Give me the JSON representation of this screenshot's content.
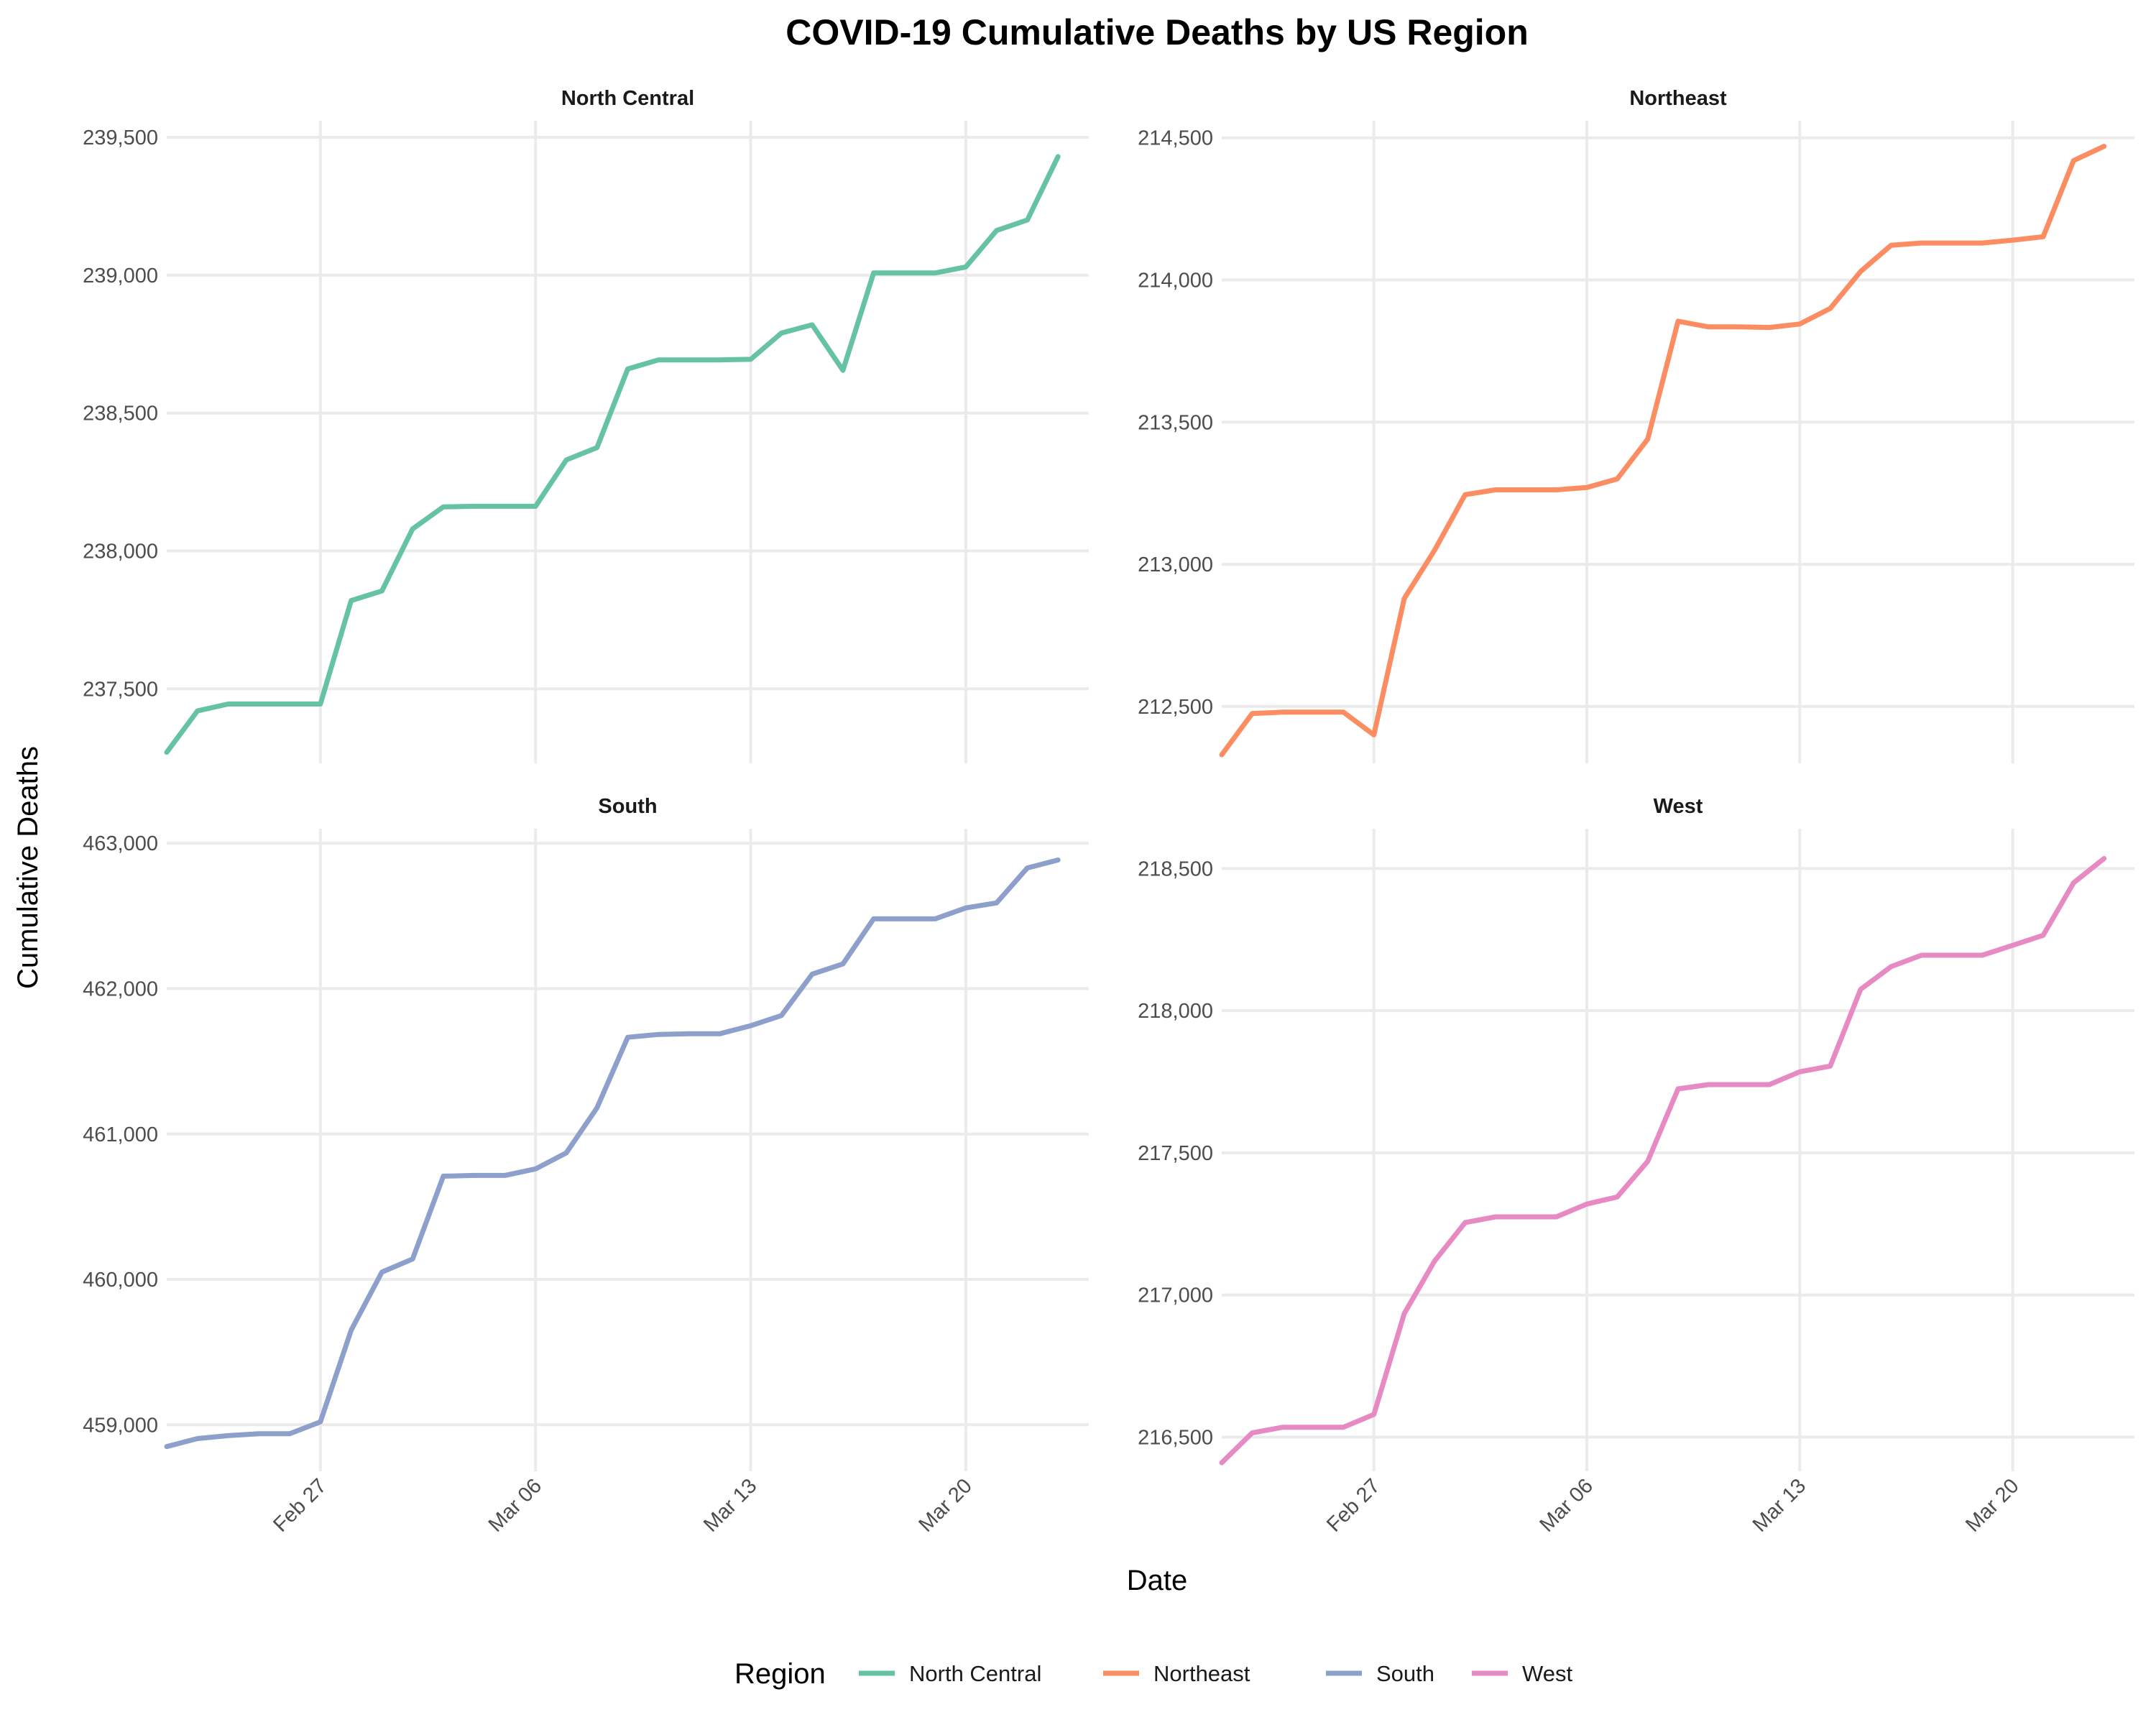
{
  "chart_data": {
    "type": "line",
    "title": "COVID-19 Cumulative Deaths by US Region",
    "xlabel": "Date",
    "ylabel": "Cumulative Deaths",
    "legend": {
      "title": "Region",
      "placement": "bottom",
      "entries": [
        "North Central",
        "Northeast",
        "South",
        "West"
      ]
    },
    "x_ticks": [
      "2023-02-27",
      "2023-03-06",
      "2023-03-13",
      "2023-03-20"
    ],
    "x_tick_labels": [
      "Feb 27",
      "Mar 06",
      "Mar 13",
      "Mar 20"
    ],
    "xlim": [
      "2023-02-22",
      "2023-03-24"
    ],
    "x": [
      "2023-02-22",
      "2023-02-23",
      "2023-02-24",
      "2023-02-25",
      "2023-02-26",
      "2023-02-27",
      "2023-02-28",
      "2023-03-01",
      "2023-03-02",
      "2023-03-03",
      "2023-03-04",
      "2023-03-05",
      "2023-03-06",
      "2023-03-07",
      "2023-03-08",
      "2023-03-09",
      "2023-03-10",
      "2023-03-11",
      "2023-03-12",
      "2023-03-13",
      "2023-03-14",
      "2023-03-15",
      "2023-03-16",
      "2023-03-17",
      "2023-03-18",
      "2023-03-19",
      "2023-03-20",
      "2023-03-21",
      "2023-03-22",
      "2023-03-23"
    ],
    "grid": true,
    "panels": [
      {
        "name": "North Central",
        "color": "#66C2A5",
        "ylim": [
          237230,
          239560
        ],
        "y_ticks": [
          237500,
          238000,
          238500,
          239000,
          239500
        ],
        "y_tick_labels": [
          "237,500",
          "238,000",
          "238,500",
          "239,000",
          "239,500"
        ],
        "values": [
          237270,
          237420,
          237445,
          237445,
          237445,
          237445,
          237820,
          237855,
          238080,
          238160,
          238162,
          238162,
          238162,
          238330,
          238375,
          238660,
          238693,
          238693,
          238693,
          238695,
          238790,
          238820,
          238655,
          239008,
          239008,
          239008,
          239030,
          239162,
          239200,
          239430
        ]
      },
      {
        "name": "Northeast",
        "color": "#FC8D62",
        "ylim": [
          212300,
          214560
        ],
        "y_ticks": [
          212500,
          213000,
          213500,
          214000,
          214500
        ],
        "y_tick_labels": [
          "212,500",
          "213,000",
          "213,500",
          "214,000",
          "214,500"
        ],
        "values": [
          212330,
          212475,
          212480,
          212480,
          212480,
          212400,
          212880,
          213050,
          213245,
          213262,
          213262,
          213262,
          213270,
          213300,
          213440,
          213855,
          213835,
          213835,
          213833,
          213845,
          213900,
          214030,
          214122,
          214130,
          214130,
          214130,
          214140,
          214152,
          214420,
          214470
        ]
      },
      {
        "name": "South",
        "color": "#8DA0CB",
        "ylim": [
          458680,
          463100
        ],
        "y_ticks": [
          459000,
          460000,
          461000,
          462000,
          463000
        ],
        "y_tick_labels": [
          "459,000",
          "460,000",
          "461,000",
          "462,000",
          "463,000"
        ],
        "values": [
          458850,
          458905,
          458925,
          458938,
          458938,
          459020,
          459650,
          460050,
          460140,
          460710,
          460715,
          460715,
          460760,
          460870,
          461180,
          461665,
          461685,
          461690,
          461690,
          461745,
          461815,
          462100,
          462170,
          462480,
          462480,
          462480,
          462555,
          462590,
          462830,
          462885
        ]
      },
      {
        "name": "West",
        "color": "#E78AC3",
        "ylim": [
          216380,
          218640
        ],
        "y_ticks": [
          216500,
          217000,
          217500,
          218000,
          218500
        ],
        "y_tick_labels": [
          "216,500",
          "217,000",
          "217,500",
          "218,000",
          "218,500"
        ],
        "values": [
          216410,
          216515,
          216535,
          216535,
          216535,
          216580,
          216935,
          217120,
          217255,
          217275,
          217275,
          217275,
          217320,
          217345,
          217470,
          217725,
          217740,
          217740,
          217740,
          217785,
          217805,
          218075,
          218155,
          218195,
          218195,
          218195,
          218230,
          218265,
          218450,
          218535
        ]
      }
    ]
  }
}
